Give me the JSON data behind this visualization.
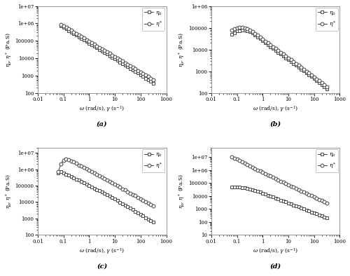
{
  "subplots": [
    {
      "label": "(a)",
      "xlim": [
        0.01,
        1000
      ],
      "ylim": [
        100,
        10000000
      ],
      "xstart": 0.08,
      "eta_a": {
        "x": [
          0.08,
          0.1,
          0.13,
          0.16,
          0.2,
          0.25,
          0.32,
          0.4,
          0.5,
          0.63,
          0.79,
          1.0,
          1.26,
          1.58,
          2.0,
          2.51,
          3.16,
          3.98,
          5.01,
          6.31,
          7.94,
          10.0,
          12.6,
          15.8,
          20.0,
          25.1,
          31.6,
          39.8,
          50.1,
          63.1,
          79.4,
          100,
          126,
          158,
          200,
          251,
          316
        ],
        "y": [
          700000,
          600000,
          480000,
          390000,
          320000,
          260000,
          210000,
          170000,
          140000,
          110000,
          90000,
          73000,
          59000,
          48000,
          39000,
          32000,
          26000,
          21000,
          17000,
          14000,
          11000,
          9000,
          7400,
          6000,
          4900,
          4000,
          3200,
          2600,
          2100,
          1700,
          1400,
          1100,
          900,
          720,
          580,
          460,
          350
        ]
      },
      "eta_star": {
        "x": [
          0.08,
          0.1,
          0.13,
          0.16,
          0.2,
          0.25,
          0.32,
          0.4,
          0.5,
          0.63,
          0.79,
          1.0,
          1.26,
          1.58,
          2.0,
          2.51,
          3.16,
          3.98,
          5.01,
          6.31,
          7.94,
          10.0,
          12.6,
          15.8,
          20.0,
          25.1,
          31.6,
          39.8,
          50.1,
          63.1,
          79.4,
          100,
          126,
          158,
          200,
          251,
          316
        ],
        "y": [
          900000,
          750000,
          600000,
          490000,
          400000,
          325000,
          265000,
          215000,
          175000,
          143000,
          116000,
          95000,
          77000,
          63000,
          51000,
          42000,
          34000,
          28000,
          23000,
          19000,
          15000,
          12500,
          10200,
          8300,
          6800,
          5500,
          4500,
          3700,
          3000,
          2450,
          2000,
          1640,
          1340,
          1090,
          880,
          710,
          580
        ]
      }
    },
    {
      "label": "(b)",
      "xlim": [
        0.01,
        1000
      ],
      "ylim": [
        100,
        1000000
      ],
      "xstart": 0.063,
      "eta_a": {
        "x": [
          0.063,
          0.079,
          0.1,
          0.126,
          0.158,
          0.2,
          0.251,
          0.316,
          0.398,
          0.5,
          0.631,
          0.794,
          1.0,
          1.26,
          1.58,
          2.0,
          2.51,
          3.16,
          3.98,
          5.01,
          6.31,
          7.94,
          10.0,
          12.6,
          15.8,
          20.0,
          25.1,
          31.6,
          39.8,
          50.1,
          63.1,
          79.4,
          100,
          126,
          158,
          200,
          251,
          316
        ],
        "y": [
          50000,
          60000,
          70000,
          75000,
          78000,
          78000,
          74000,
          66000,
          56000,
          46000,
          38000,
          31000,
          25000,
          20000,
          16500,
          13500,
          11000,
          9000,
          7400,
          6100,
          5000,
          4100,
          3400,
          2800,
          2300,
          1900,
          1550,
          1270,
          1040,
          850,
          700,
          570,
          460,
          375,
          300,
          240,
          190,
          150
        ]
      },
      "eta_star": {
        "x": [
          0.063,
          0.079,
          0.1,
          0.126,
          0.158,
          0.2,
          0.251,
          0.316,
          0.398,
          0.5,
          0.631,
          0.794,
          1.0,
          1.26,
          1.58,
          2.0,
          2.51,
          3.16,
          3.98,
          5.01,
          6.31,
          7.94,
          10.0,
          12.6,
          15.8,
          20.0,
          25.1,
          31.6,
          39.8,
          50.1,
          63.1,
          79.4,
          100,
          126,
          158,
          200,
          251,
          316
        ],
        "y": [
          80000,
          90000,
          100000,
          105000,
          105000,
          100000,
          92000,
          80000,
          67000,
          55000,
          45000,
          37000,
          30000,
          24500,
          20000,
          16500,
          13500,
          11000,
          9000,
          7400,
          6100,
          5000,
          4100,
          3350,
          2750,
          2250,
          1850,
          1510,
          1240,
          1010,
          830,
          680,
          555,
          450,
          365,
          295,
          238,
          192
        ]
      }
    },
    {
      "label": "(c)",
      "xlim": [
        0.01,
        1000
      ],
      "ylim": [
        100,
        20000000
      ],
      "xstart": 0.063,
      "eta_a": {
        "x": [
          0.063,
          0.079,
          0.1,
          0.126,
          0.158,
          0.2,
          0.251,
          0.316,
          0.398,
          0.5,
          0.631,
          0.794,
          1.0,
          1.26,
          1.58,
          2.0,
          2.51,
          3.16,
          3.98,
          5.01,
          6.31,
          7.94,
          10.0,
          12.6,
          15.8,
          20.0,
          25.1,
          31.6,
          39.8,
          50.1,
          63.1,
          79.4,
          100,
          126,
          158,
          200,
          251,
          316
        ],
        "y": [
          600000,
          700000,
          600000,
          500000,
          420000,
          360000,
          300000,
          250000,
          210000,
          175000,
          145000,
          120000,
          100000,
          83000,
          69000,
          58000,
          48000,
          40000,
          33000,
          27000,
          22000,
          18000,
          15000,
          12200,
          9900,
          8000,
          6500,
          5200,
          4200,
          3400,
          2700,
          2200,
          1750,
          1400,
          1100,
          870,
          700,
          580
        ]
      },
      "eta_star": {
        "x": [
          0.063,
          0.079,
          0.1,
          0.126,
          0.158,
          0.2,
          0.251,
          0.316,
          0.398,
          0.5,
          0.631,
          0.794,
          1.0,
          1.26,
          1.58,
          2.0,
          2.51,
          3.16,
          3.98,
          5.01,
          6.31,
          7.94,
          10.0,
          12.6,
          15.8,
          20.0,
          25.1,
          31.6,
          39.8,
          50.1,
          63.1,
          79.4,
          100,
          126,
          158,
          200,
          251,
          316
        ],
        "y": [
          700000,
          2000000,
          3500000,
          4200000,
          3800000,
          3200000,
          2700000,
          2200000,
          1800000,
          1500000,
          1230000,
          1010000,
          830000,
          680000,
          560000,
          460000,
          378000,
          310000,
          255000,
          210000,
          172000,
          141000,
          116000,
          95000,
          78000,
          64000,
          53000,
          43000,
          35500,
          29000,
          24000,
          19500,
          16000,
          13100,
          10700,
          8800,
          7200,
          5900
        ]
      }
    },
    {
      "label": "(d)",
      "xlim": [
        0.01,
        1000
      ],
      "ylim": [
        10,
        50000000
      ],
      "xstart": 0.063,
      "eta_a": {
        "x": [
          0.063,
          0.079,
          0.1,
          0.126,
          0.158,
          0.2,
          0.251,
          0.316,
          0.398,
          0.5,
          0.631,
          0.794,
          1.0,
          1.26,
          1.58,
          2.0,
          2.51,
          3.16,
          3.98,
          5.01,
          6.31,
          7.94,
          10.0,
          12.6,
          15.8,
          20.0,
          25.1,
          31.6,
          39.8,
          50.1,
          63.1,
          79.4,
          100,
          126,
          158,
          200,
          251,
          316
        ],
        "y": [
          50000,
          50000,
          50000,
          48000,
          45000,
          42000,
          38000,
          34000,
          30000,
          26000,
          22000,
          19000,
          16000,
          13500,
          11400,
          9600,
          8100,
          6800,
          5700,
          4800,
          4000,
          3400,
          2850,
          2400,
          2000,
          1670,
          1400,
          1170,
          980,
          820,
          690,
          580,
          490,
          410,
          345,
          290,
          245,
          200
        ]
      },
      "eta_star": {
        "x": [
          0.063,
          0.079,
          0.1,
          0.126,
          0.158,
          0.2,
          0.251,
          0.316,
          0.398,
          0.5,
          0.631,
          0.794,
          1.0,
          1.26,
          1.58,
          2.0,
          2.51,
          3.16,
          3.98,
          5.01,
          6.31,
          7.94,
          10.0,
          12.6,
          15.8,
          20.0,
          25.1,
          31.6,
          39.8,
          50.1,
          63.1,
          79.4,
          100,
          126,
          158,
          200,
          251,
          316
        ],
        "y": [
          10000000,
          8000000,
          6500000,
          5200000,
          4100000,
          3200000,
          2500000,
          2000000,
          1580000,
          1260000,
          1000000,
          800000,
          640000,
          510000,
          410000,
          330000,
          265000,
          212000,
          170000,
          137000,
          110000,
          88000,
          71000,
          57000,
          46000,
          37000,
          30000,
          24000,
          19500,
          15700,
          12700,
          10300,
          8300,
          6700,
          5400,
          4400,
          3500,
          2900
        ]
      }
    }
  ],
  "ylabel": "$\\eta_a$, $\\eta^*$ (Pa.S)",
  "xlabel": "$\\omega$ (rad/s), $\\gamma$ (s$^{-1}$)",
  "legend_eta_a": "$\\eta_a$",
  "legend_eta_star": "$\\eta^*$",
  "line_color": "#444444",
  "bg_color": "#ffffff"
}
